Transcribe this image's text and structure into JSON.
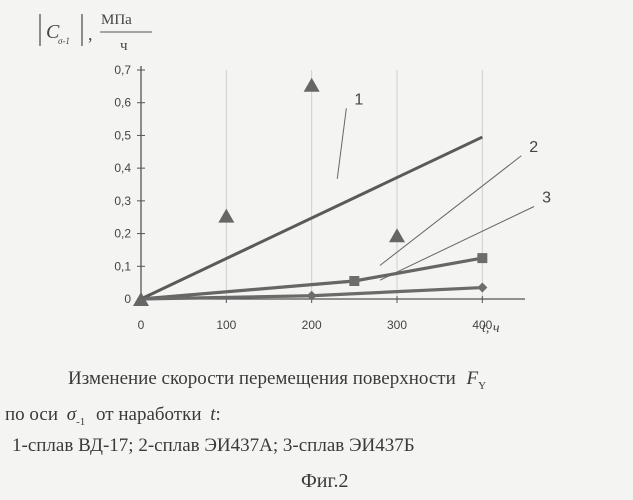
{
  "chart_data": {
    "type": "line",
    "ylabel_parts": {
      "symbol": "C",
      "subscript": "σ-1",
      "unit_num": "МПа",
      "unit_den": "ч",
      "sep": ","
    },
    "xlabel": "t, ч",
    "x_ticks": [
      "0",
      "100",
      "200",
      "300",
      "400"
    ],
    "y_ticks": [
      "0",
      "0,1",
      "0,2",
      "0,3",
      "0,4",
      "0,5",
      "0,6",
      "0,7"
    ],
    "xlim": [
      0,
      450
    ],
    "ylim": [
      0,
      0.7
    ],
    "grid": true,
    "series": [
      {
        "name": "1",
        "color": "#5a5a5a",
        "marker": "none",
        "x": [
          0,
          400
        ],
        "y": [
          0,
          0.495
        ],
        "label_at": [
          250,
          0.595
        ]
      },
      {
        "name": "2",
        "color": "#666666",
        "marker": "square",
        "x": [
          0,
          250,
          400
        ],
        "y": [
          0,
          0.055,
          0.125
        ],
        "label_at": [
          455,
          0.45
        ]
      },
      {
        "name": "3",
        "color": "#6a6a6a",
        "marker": "diamond",
        "x": [
          0,
          200,
          400
        ],
        "y": [
          0,
          0.01,
          0.035
        ],
        "label_at": [
          470,
          0.295
        ]
      }
    ],
    "scatter": {
      "marker": "triangle",
      "color": "#666666",
      "x": [
        0,
        100,
        200,
        300
      ],
      "y": [
        0,
        0.255,
        0.655,
        0.195
      ]
    }
  },
  "caption": {
    "line1_text": "Изменение скорости перемещения поверхности",
    "line1_symbol": "F",
    "line1_sub": "Y",
    "line2_prefix": "по оси",
    "line2_symbol": "σ",
    "line2_sub": "-1",
    "line2_mid": "от наработки",
    "line2_t": "t",
    "line2_colon": ":",
    "line3": "1-сплав ВД-17; 2-сплав ЭИ437А; 3-сплав ЭИ437Б",
    "figure": "Фиг.2"
  }
}
